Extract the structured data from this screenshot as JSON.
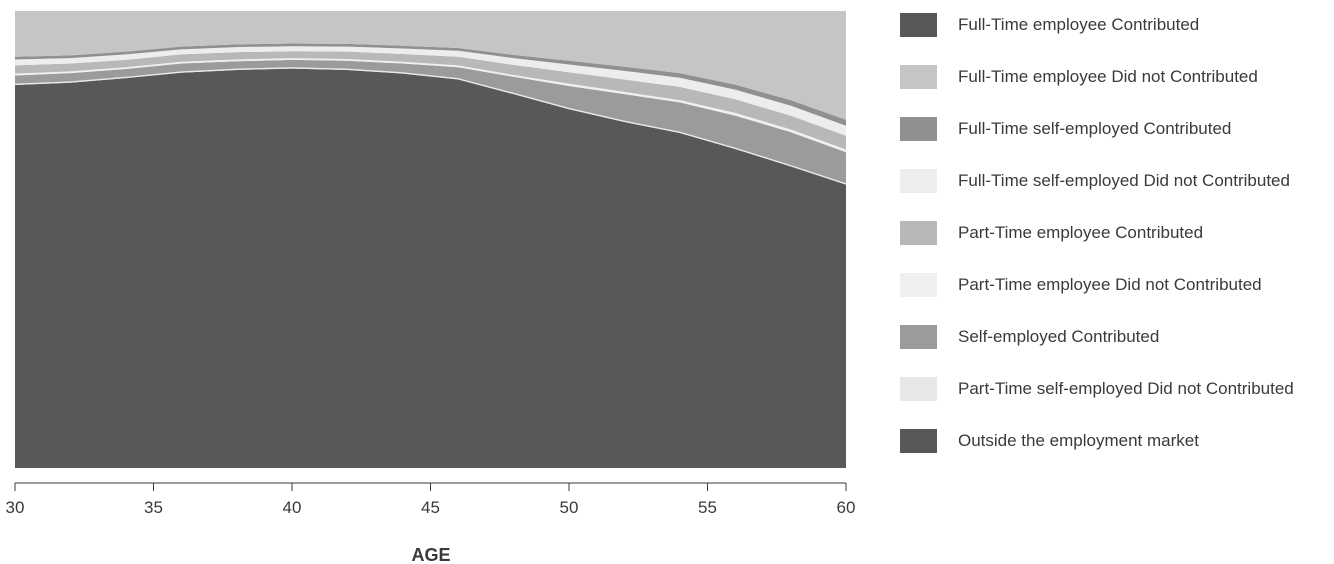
{
  "chart_data": {
    "type": "area",
    "stacked": true,
    "normalized": true,
    "xlabel": "AGE",
    "ylabel": "",
    "title": "",
    "xlim": [
      30,
      60
    ],
    "ylim": [
      0,
      1
    ],
    "xticks": [
      30,
      35,
      40,
      45,
      50,
      55,
      60
    ],
    "grid": false,
    "legend_position": "right",
    "x": [
      30,
      32,
      34,
      36,
      38,
      40,
      42,
      44,
      46,
      48,
      50,
      52,
      54,
      56,
      58,
      60
    ],
    "series": [
      {
        "name": "Outside the employment market",
        "color": "#58585a",
        "values": [
          0.838,
          0.843,
          0.853,
          0.865,
          0.871,
          0.874,
          0.871,
          0.863,
          0.85,
          0.818,
          0.785,
          0.757,
          0.733,
          0.698,
          0.66,
          0.62
        ]
      },
      {
        "name": "Part-Time self-employed Did not Contributed",
        "color": "#e8e8e9",
        "values": [
          0.003,
          0.003,
          0.003,
          0.003,
          0.003,
          0.003,
          0.003,
          0.003,
          0.003,
          0.003,
          0.003,
          0.003,
          0.003,
          0.003,
          0.003,
          0.003
        ]
      },
      {
        "name": "Self-employed Contributed",
        "color": "#9a9b9d",
        "values": [
          0.018,
          0.018,
          0.017,
          0.017,
          0.016,
          0.016,
          0.017,
          0.019,
          0.024,
          0.035,
          0.048,
          0.058,
          0.064,
          0.07,
          0.072,
          0.068
        ]
      },
      {
        "name": "Part-Time employee Did not Contributed",
        "color": "#efeff0",
        "values": [
          0.004,
          0.004,
          0.004,
          0.004,
          0.004,
          0.004,
          0.004,
          0.004,
          0.004,
          0.004,
          0.005,
          0.005,
          0.005,
          0.006,
          0.006,
          0.006
        ]
      },
      {
        "name": "Part-Time employee Contributed",
        "color": "#b7b8ba",
        "values": [
          0.018,
          0.017,
          0.016,
          0.016,
          0.016,
          0.015,
          0.016,
          0.017,
          0.019,
          0.022,
          0.025,
          0.027,
          0.029,
          0.03,
          0.03,
          0.03
        ]
      },
      {
        "name": "Full-Time self-employed Did not Contributed",
        "color": "#ededee",
        "values": [
          0.013,
          0.012,
          0.012,
          0.011,
          0.011,
          0.011,
          0.011,
          0.012,
          0.013,
          0.015,
          0.017,
          0.019,
          0.02,
          0.021,
          0.022,
          0.022
        ]
      },
      {
        "name": "Full-Time self-employed Contributed",
        "color": "#8f9092",
        "values": [
          0.006,
          0.006,
          0.006,
          0.006,
          0.006,
          0.006,
          0.006,
          0.006,
          0.006,
          0.007,
          0.008,
          0.009,
          0.01,
          0.011,
          0.012,
          0.013
        ]
      },
      {
        "name": "Full-Time employee Did not Contributed",
        "color": "#c4c5c7",
        "values": [
          0.1,
          0.097,
          0.089,
          0.078,
          0.073,
          0.071,
          0.072,
          0.076,
          0.081,
          0.096,
          0.109,
          0.122,
          0.136,
          0.161,
          0.195,
          0.238
        ]
      },
      {
        "name": "Full-Time employee Contributed",
        "color": "#58585a",
        "values": [
          0.0,
          0.0,
          0.0,
          0.0,
          0.0,
          0.0,
          0.0,
          0.0,
          0.0,
          0.0,
          0.0,
          0.0,
          0.0,
          0.0,
          0.0,
          0.0
        ]
      }
    ]
  },
  "legend": {
    "items": [
      {
        "label": "Full-Time employee Contributed",
        "color": "#58585a"
      },
      {
        "label": "Full-Time employee Did not Contributed",
        "color": "#c4c5c7"
      },
      {
        "label": "Full-Time self-employed Contributed",
        "color": "#8f9092"
      },
      {
        "label": "Full-Time self-employed Did not Contributed",
        "color": "#ededee"
      },
      {
        "label": "Part-Time employee Contributed",
        "color": "#b7b8ba"
      },
      {
        "label": "Part-Time employee Did not Contributed",
        "color": "#efeff0"
      },
      {
        "label": "Self-employed Contributed",
        "color": "#9a9b9d"
      },
      {
        "label": "Part-Time self-employed Did not Contributed",
        "color": "#e8e8e9"
      },
      {
        "label": "Outside the employment market",
        "color": "#58585a"
      }
    ]
  }
}
